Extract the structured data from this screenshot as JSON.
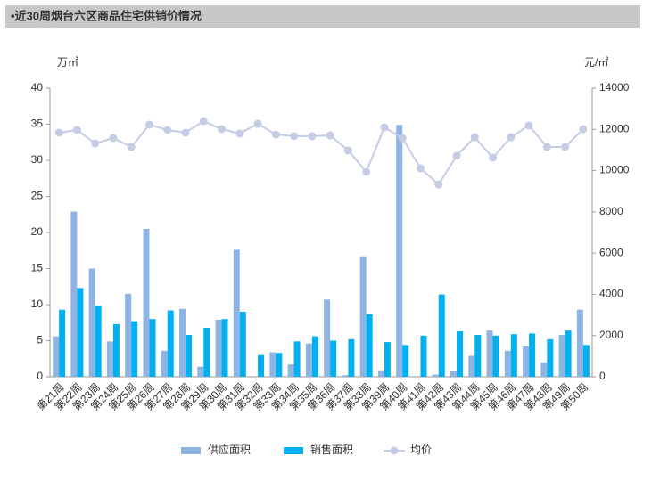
{
  "chart_data": {
    "type": "combo",
    "title": "•近30周烟台六区商品住宅供销价情况",
    "y_label": "万㎡",
    "y2_label": "元/㎡",
    "categories": [
      "第21周",
      "第22周",
      "第23周",
      "第24周",
      "第25周",
      "第26周",
      "第27周",
      "第28周",
      "第29周",
      "第30周",
      "第31周",
      "第32周",
      "第33周",
      "第34周",
      "第35周",
      "第36周",
      "第37周",
      "第38周",
      "第39周",
      "第40周",
      "第41周",
      "第42周",
      "第43周",
      "第44周",
      "第45周",
      "第46周",
      "第47周",
      "第48周",
      "第49周",
      "第50周"
    ],
    "series": [
      {
        "name": "供应面积",
        "type": "bar",
        "color": "#8db4e2",
        "values": [
          5.6,
          22.9,
          15.0,
          4.9,
          11.5,
          20.5,
          3.6,
          9.4,
          1.4,
          7.9,
          17.6,
          0,
          3.4,
          1.7,
          4.6,
          10.7,
          0.2,
          16.7,
          0.9,
          34.9,
          0,
          0.3,
          0.8,
          2.9,
          6.4,
          3.6,
          4.2,
          2.0,
          5.8,
          9.3
        ]
      },
      {
        "name": "销售面积",
        "type": "bar",
        "color": "#00b0f0",
        "values": [
          9.3,
          12.3,
          9.8,
          7.3,
          7.7,
          8.0,
          9.2,
          5.8,
          6.8,
          8.0,
          9.0,
          3.0,
          3.3,
          4.9,
          5.6,
          5.0,
          5.2,
          8.7,
          4.8,
          4.4,
          5.7,
          11.4,
          6.3,
          5.8,
          5.7,
          5.9,
          6.0,
          5.2,
          6.4,
          4.4
        ]
      },
      {
        "name": "均价",
        "type": "line",
        "axis": "y2",
        "color": "#c5cce6",
        "values": [
          11840,
          11970,
          11320,
          11580,
          11150,
          12230,
          11970,
          11840,
          12400,
          12010,
          11800,
          12270,
          11750,
          11670,
          11670,
          11710,
          10980,
          9940,
          12100,
          11580,
          10110,
          9330,
          10720,
          11620,
          10630,
          11620,
          12190,
          11150,
          11150,
          12010
        ]
      }
    ],
    "ylim": [
      0,
      40
    ],
    "yticks": [
      0,
      5,
      10,
      15,
      20,
      25,
      30,
      35,
      40
    ],
    "y2lim": [
      0,
      14000
    ],
    "y2ticks": [
      0,
      2000,
      4000,
      6000,
      8000,
      10000,
      12000,
      14000
    ],
    "grid": false
  }
}
